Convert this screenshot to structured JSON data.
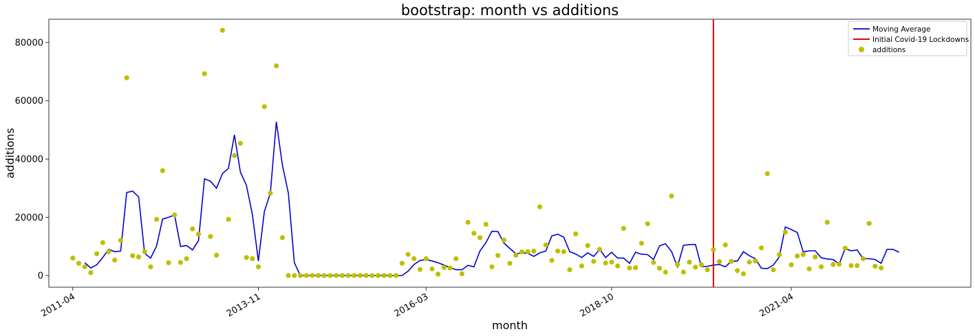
{
  "chart_data": {
    "type": "line+scatter",
    "title": "bootstrap: month vs additions",
    "xlabel": "month",
    "ylabel": "additions",
    "ylim": [
      -4000,
      88000
    ],
    "xlim": [
      "2010-12",
      "2023-10"
    ],
    "x_ticks": [
      "2011-04",
      "2013-11",
      "2016-03",
      "2018-10",
      "2021-04"
    ],
    "y_ticks": [
      0,
      20000,
      40000,
      60000,
      80000
    ],
    "vline": {
      "x": "2020-03",
      "name": "Initial Covid-19 Lockdowns",
      "color": "#dd0000"
    },
    "legend": {
      "position": "top-right",
      "entries": [
        "Moving Average",
        "Initial Covid-19 Lockdowns",
        "additions"
      ]
    },
    "colors": {
      "moving_average": "#0000cc",
      "lockdown": "#dd0000",
      "additions": "#bfbf00"
    },
    "start_month": "2011-04",
    "series": [
      {
        "name": "additions",
        "values": [
          6000,
          4200,
          3000,
          1000,
          7500,
          11300,
          8200,
          5300,
          12100,
          67900,
          6800,
          6400,
          8200,
          3000,
          19300,
          36000,
          4400,
          20800,
          4500,
          5800,
          16000,
          14200,
          69300,
          13400,
          7000,
          84200,
          19300,
          41200,
          45400,
          6200,
          5800,
          3000,
          58000,
          28300,
          72000,
          13000,
          0,
          0,
          0,
          0,
          0,
          0,
          0,
          0,
          0,
          0,
          0,
          0,
          0,
          0,
          0,
          0,
          0,
          0,
          0,
          4200,
          7300,
          5800,
          2100,
          5800,
          2300,
          500,
          2800,
          2600,
          5800,
          600,
          18300,
          14500,
          13000,
          17600,
          3000,
          6900,
          12200,
          4200,
          7000,
          8100,
          8200,
          8400,
          23600,
          10500,
          5200,
          8400,
          8200,
          2000,
          14300,
          3300,
          10300,
          4900,
          9000,
          4300,
          4600,
          3300,
          16200,
          2600,
          2700,
          11100,
          17800,
          4500,
          2500,
          1200,
          27300,
          3800,
          1200,
          4600,
          2900,
          3700,
          2000,
          8900,
          4800,
          10500,
          4900,
          1700,
          600,
          4600,
          5000,
          9500,
          35000,
          2000,
          7100,
          14900,
          3700,
          6700,
          7200,
          2300,
          6400,
          3000,
          18300,
          3800,
          3900,
          9400,
          3400,
          3400,
          5800,
          17900,
          3200,
          2600
        ]
      },
      {
        "name": "Moving Average",
        "start_month": "2011-06",
        "values": [
          4400,
          2600,
          3700,
          6200,
          9000,
          8200,
          8400,
          28500,
          29000,
          27000,
          7600,
          6000,
          10200,
          19400,
          20000,
          20800,
          10000,
          10300,
          8800,
          12000,
          33200,
          32400,
          30000,
          35000,
          36800,
          48300,
          35500,
          31000,
          21000,
          5000,
          22000,
          28300,
          52800,
          38000,
          28300,
          4400,
          0,
          0,
          0,
          0,
          0,
          0,
          0,
          0,
          0,
          0,
          0,
          0,
          0,
          0,
          0,
          0,
          0,
          0,
          1500,
          3800,
          5200,
          5500,
          5000,
          4400,
          3600,
          2800,
          2000,
          2000,
          3500,
          3000,
          8400,
          11300,
          15200,
          15100,
          11200,
          9300,
          7500,
          7800,
          7600,
          6600,
          7800,
          8400,
          13600,
          14200,
          13200,
          8200,
          7400,
          6200,
          7800,
          6600,
          9000,
          6200,
          8000,
          6000,
          6000,
          4200,
          8000,
          7300,
          7200,
          5500,
          10200,
          10900,
          8300,
          3000,
          10400,
          10600,
          10700,
          3000,
          3200,
          3600,
          3800,
          3000,
          4900,
          5000,
          8200,
          6800,
          5800,
          2500,
          2400,
          3600,
          6400,
          16700,
          15800,
          14800,
          8100,
          8500,
          8500,
          6100,
          5700,
          5500,
          3900,
          9300,
          8500,
          8800,
          5800,
          5800,
          5500,
          4200,
          9000,
          9000,
          8000
        ]
      }
    ]
  }
}
